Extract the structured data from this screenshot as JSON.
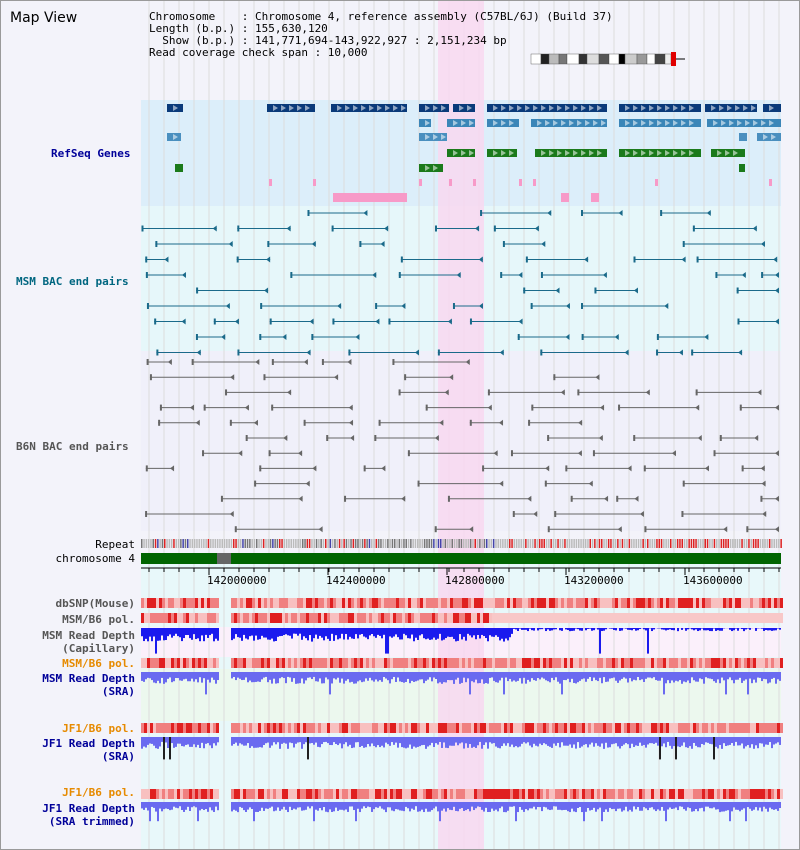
{
  "page": {
    "title": "Map View"
  },
  "header": {
    "chromosome_line": "Chromosome    : Chromosome 4, reference assembly (C57BL/6J) (Build 37)",
    "length_line": "Length (b.p.) : 155,630,120",
    "show_line": "  Show (b.p.) : 141,771,694-143,922,927 : 2,151,234 bp",
    "span_line": "Read coverage check span : 10,000"
  },
  "tracks": {
    "refseq": "RefSeq Genes",
    "msm_bac": "MSM BAC end pairs",
    "b6n_bac": "B6N BAC end pairs",
    "repeat": "Repeat",
    "chromosome": "chromosome 4",
    "dbsnp": "dbSNP(Mouse)",
    "msm_b6_pol_1": "MSM/B6 pol.",
    "msm_depth_cap_1": "MSM Read Depth",
    "msm_depth_cap_2": "(Capillary)",
    "msm_b6_pol_2": "MSM/B6 pol.",
    "msm_depth_sra_1": "MSM Read Depth",
    "msm_depth_sra_2": "(SRA)",
    "jf1_b6_pol_1": "JF1/B6 pol.",
    "jf1_depth_sra_1": "JF1 Read Depth",
    "jf1_depth_sra_2": "(SRA)",
    "jf1_b6_pol_2": "JF1/B6 pol.",
    "jf1_depth_trim_1": "JF1 Read Depth",
    "jf1_depth_trim_2": "(SRA trimmed)"
  },
  "axis": {
    "ticks": [
      "142000000",
      "142400000",
      "142800000",
      "143200000",
      "143600000"
    ]
  },
  "colors": {
    "refseq_bg": "#dceefa",
    "bac_bg": "#e6f7fa",
    "highlight": "#f8d8f0",
    "chromosome_band": "#006400",
    "snp": "#e84848",
    "depth_dark": "#1a1aee",
    "depth_light": "#6a6af0",
    "label_blue": "#000099",
    "label_teal": "#006680",
    "label_gray": "#555555",
    "label_orange": "#e68a00"
  }
}
